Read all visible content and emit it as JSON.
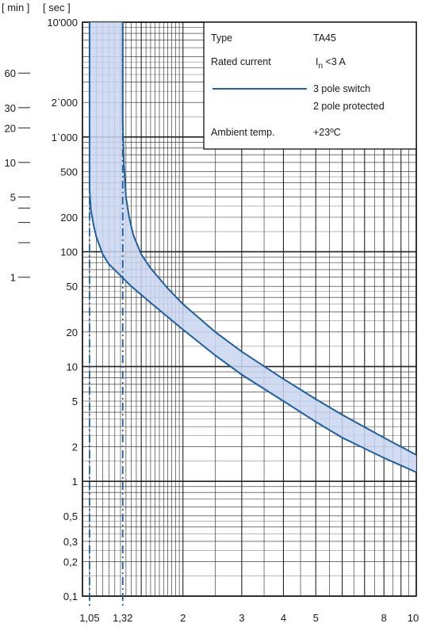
{
  "chart_data": {
    "type": "line",
    "title": "",
    "xlabel": "",
    "ylabel": "",
    "x_scale": "log",
    "y_scale": "log",
    "xlim": [
      1,
      10
    ],
    "ylim": [
      0.1,
      10000
    ],
    "unit_labels": {
      "min": "[ min ]",
      "sec": "[ sec ]"
    },
    "x_ticks": [
      {
        "value": 1.05,
        "label": "1,05"
      },
      {
        "value": 1.32,
        "label": "1,32"
      },
      {
        "value": 2,
        "label": "2"
      },
      {
        "value": 3,
        "label": "3"
      },
      {
        "value": 4,
        "label": "4"
      },
      {
        "value": 5,
        "label": "5"
      },
      {
        "value": 8,
        "label": "8"
      },
      {
        "value": 10,
        "label": "10"
      }
    ],
    "y_ticks": [
      {
        "value": 10000,
        "label": "10'000"
      },
      {
        "value": 2000,
        "label": "2`000"
      },
      {
        "value": 1000,
        "label": "1`000"
      },
      {
        "value": 500,
        "label": "500"
      },
      {
        "value": 200,
        "label": "200"
      },
      {
        "value": 100,
        "label": "100"
      },
      {
        "value": 50,
        "label": "50"
      },
      {
        "value": 20,
        "label": "20"
      },
      {
        "value": 10,
        "label": "10"
      },
      {
        "value": 5,
        "label": "5"
      },
      {
        "value": 2,
        "label": "2"
      },
      {
        "value": 1,
        "label": "1"
      },
      {
        "value": 0.5,
        "label": "0,5"
      },
      {
        "value": 0.3,
        "label": "0,3"
      },
      {
        "value": 0.2,
        "label": "0,2"
      },
      {
        "value": 0.1,
        "label": "0,1"
      }
    ],
    "minute_ticks": [
      {
        "value": 3600,
        "label": "60"
      },
      {
        "value": 1800,
        "label": "30"
      },
      {
        "value": 1200,
        "label": "20"
      },
      {
        "value": 600,
        "label": "10"
      },
      {
        "value": 300,
        "label": "5"
      },
      {
        "value": 240,
        "label": ""
      },
      {
        "value": 180,
        "label": ""
      },
      {
        "value": 120,
        "label": ""
      },
      {
        "value": 60,
        "label": "1"
      }
    ],
    "reference_lines": [
      {
        "x": 1.05,
        "style": "dash-dot"
      },
      {
        "x": 1.32,
        "style": "dash-dot"
      }
    ],
    "band": {
      "color": "#c9d5ee",
      "line_color": "#1f5f9f",
      "lower_curve": [
        {
          "x": 1.05,
          "y": 10000
        },
        {
          "x": 1.05,
          "y": 350
        },
        {
          "x": 1.06,
          "y": 230
        },
        {
          "x": 1.08,
          "y": 170
        },
        {
          "x": 1.1,
          "y": 135
        },
        {
          "x": 1.15,
          "y": 95
        },
        {
          "x": 1.2,
          "y": 78
        },
        {
          "x": 1.3,
          "y": 62
        },
        {
          "x": 1.4,
          "y": 50
        },
        {
          "x": 1.6,
          "y": 36
        },
        {
          "x": 2,
          "y": 21
        },
        {
          "x": 2.5,
          "y": 12.5
        },
        {
          "x": 3,
          "y": 8.5
        },
        {
          "x": 4,
          "y": 5
        },
        {
          "x": 5,
          "y": 3.3
        },
        {
          "x": 6,
          "y": 2.4
        },
        {
          "x": 8,
          "y": 1.6
        },
        {
          "x": 10,
          "y": 1.2
        }
      ],
      "upper_curve": [
        {
          "x": 1.32,
          "y": 10000
        },
        {
          "x": 1.32,
          "y": 1400
        },
        {
          "x": 1.33,
          "y": 600
        },
        {
          "x": 1.35,
          "y": 300
        },
        {
          "x": 1.38,
          "y": 200
        },
        {
          "x": 1.42,
          "y": 140
        },
        {
          "x": 1.5,
          "y": 95
        },
        {
          "x": 1.6,
          "y": 72
        },
        {
          "x": 1.8,
          "y": 48
        },
        {
          "x": 2,
          "y": 35
        },
        {
          "x": 2.5,
          "y": 20
        },
        {
          "x": 3,
          "y": 13.5
        },
        {
          "x": 4,
          "y": 7.8
        },
        {
          "x": 5,
          "y": 5.2
        },
        {
          "x": 6,
          "y": 3.8
        },
        {
          "x": 8,
          "y": 2.4
        },
        {
          "x": 10,
          "y": 1.7
        }
      ]
    },
    "legend": {
      "placement": "top-right",
      "rows": [
        {
          "label": "Type",
          "value": "TA45"
        },
        {
          "label": "Rated current",
          "value": "I",
          "subscript": "n",
          "suffix": " <3 A"
        },
        {
          "label": "",
          "line": true,
          "value": "3 pole switch",
          "value2": "2 pole protected"
        },
        {
          "label": "Ambient temp.",
          "value": "+23ºC"
        }
      ]
    }
  }
}
